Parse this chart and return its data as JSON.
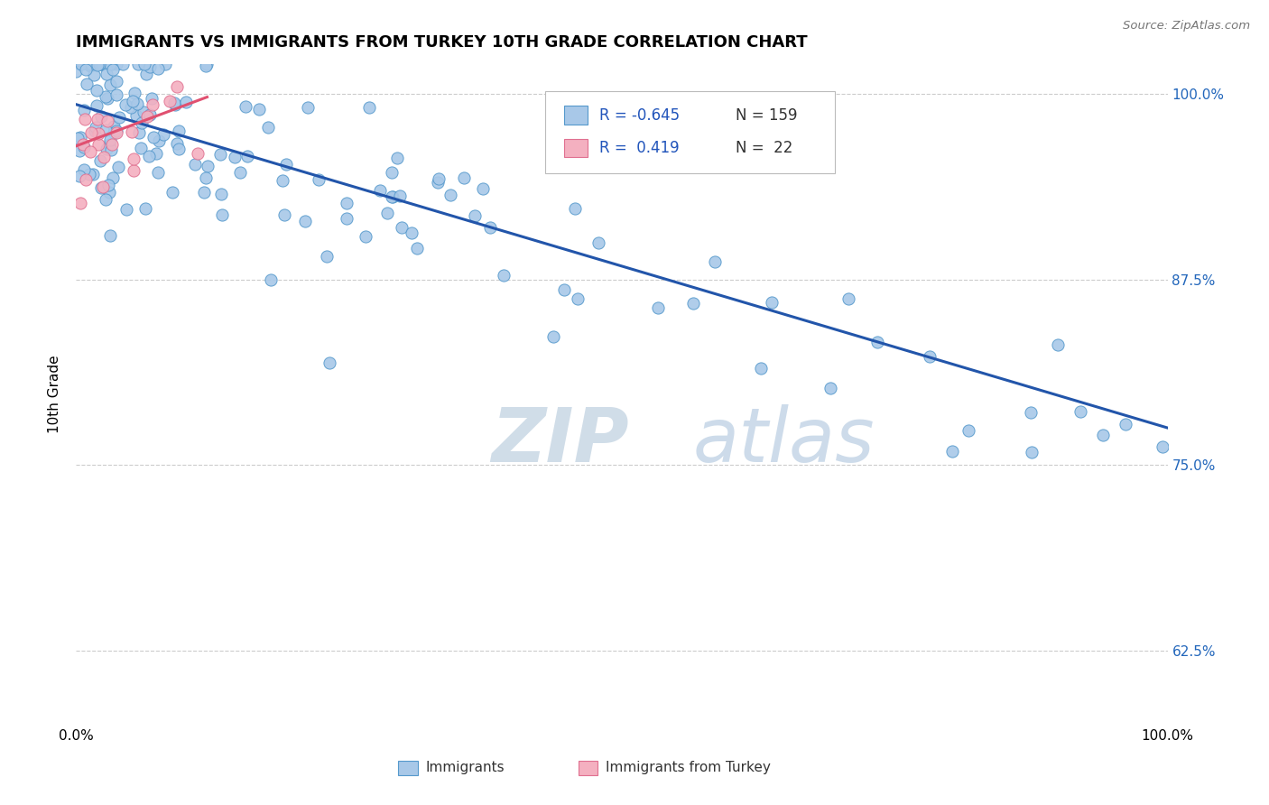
{
  "title": "IMMIGRANTS VS IMMIGRANTS FROM TURKEY 10TH GRADE CORRELATION CHART",
  "source_text": "Source: ZipAtlas.com",
  "ylabel": "10th Grade",
  "xlim": [
    0.0,
    1.0
  ],
  "ylim": [
    0.575,
    1.02
  ],
  "yticks": [
    0.625,
    0.75,
    0.875,
    1.0
  ],
  "ytick_labels": [
    "62.5%",
    "75.0%",
    "87.5%",
    "100.0%"
  ],
  "legend_r1": "-0.645",
  "legend_n1": "159",
  "legend_r2": "0.419",
  "legend_n2": "22",
  "blue_fill": "#a8c8e8",
  "blue_edge": "#5599cc",
  "pink_fill": "#f4b0c0",
  "pink_edge": "#e07090",
  "line_blue": "#2255aa",
  "line_pink": "#e05070",
  "watermark_color": "#d0dde8",
  "background_color": "#ffffff",
  "grid_color": "#cccccc",
  "blue_trend_start_y": 0.993,
  "blue_trend_end_y": 0.775,
  "pink_trend_start_x": 0.0,
  "pink_trend_end_x": 0.12,
  "pink_trend_start_y": 0.965,
  "pink_trend_end_y": 0.998
}
